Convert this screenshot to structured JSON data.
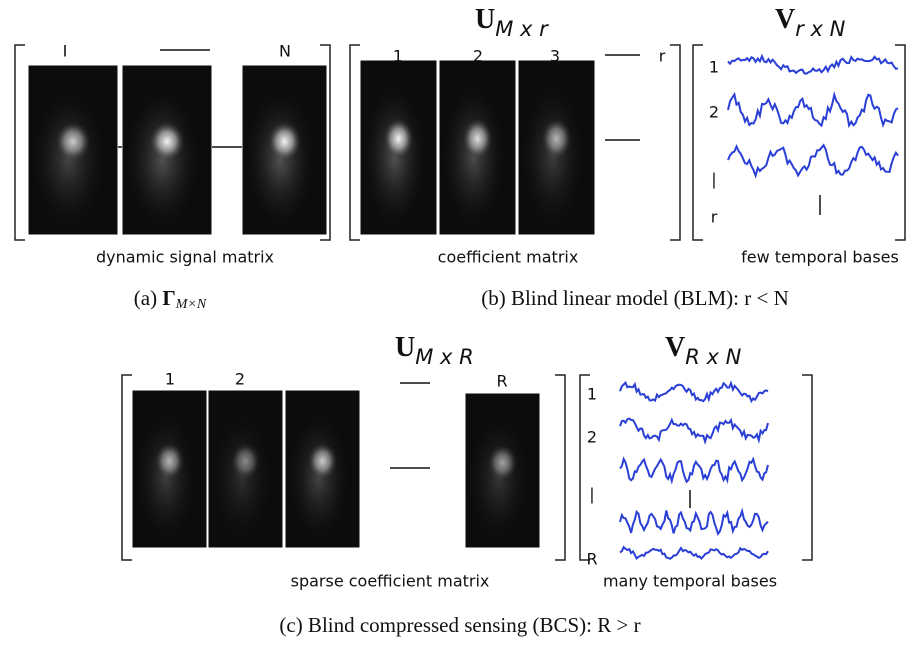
{
  "panel_a": {
    "col_labels": [
      "I",
      "N"
    ],
    "caption_label": "dynamic signal matrix",
    "caption": {
      "prefix": "(a)",
      "symbol": "Γ",
      "sub": "M×N"
    }
  },
  "panel_b": {
    "u_title": {
      "main": "U",
      "sub": "M x r"
    },
    "u_col_labels": [
      "1",
      "2",
      "3",
      "r"
    ],
    "u_caption": "coefficient matrix",
    "v_title": {
      "main": "V",
      "sub": "r x N"
    },
    "v_row_labels": [
      "1",
      "2",
      "|",
      "r"
    ],
    "v_caption": "few temporal bases",
    "caption": "(b) Blind linear model (BLM): r < N"
  },
  "panel_c": {
    "u_title": {
      "main": "U",
      "sub": "M x R"
    },
    "u_col_labels": [
      "1",
      "2",
      "R"
    ],
    "u_caption": "sparse coefficient matrix",
    "v_title": {
      "main": "V",
      "sub": "R x N"
    },
    "v_row_labels": [
      "1",
      "2",
      "|",
      "R"
    ],
    "v_caption": "many temporal bases",
    "caption": "(c) Blind compressed sensing (BCS): R > r"
  }
}
